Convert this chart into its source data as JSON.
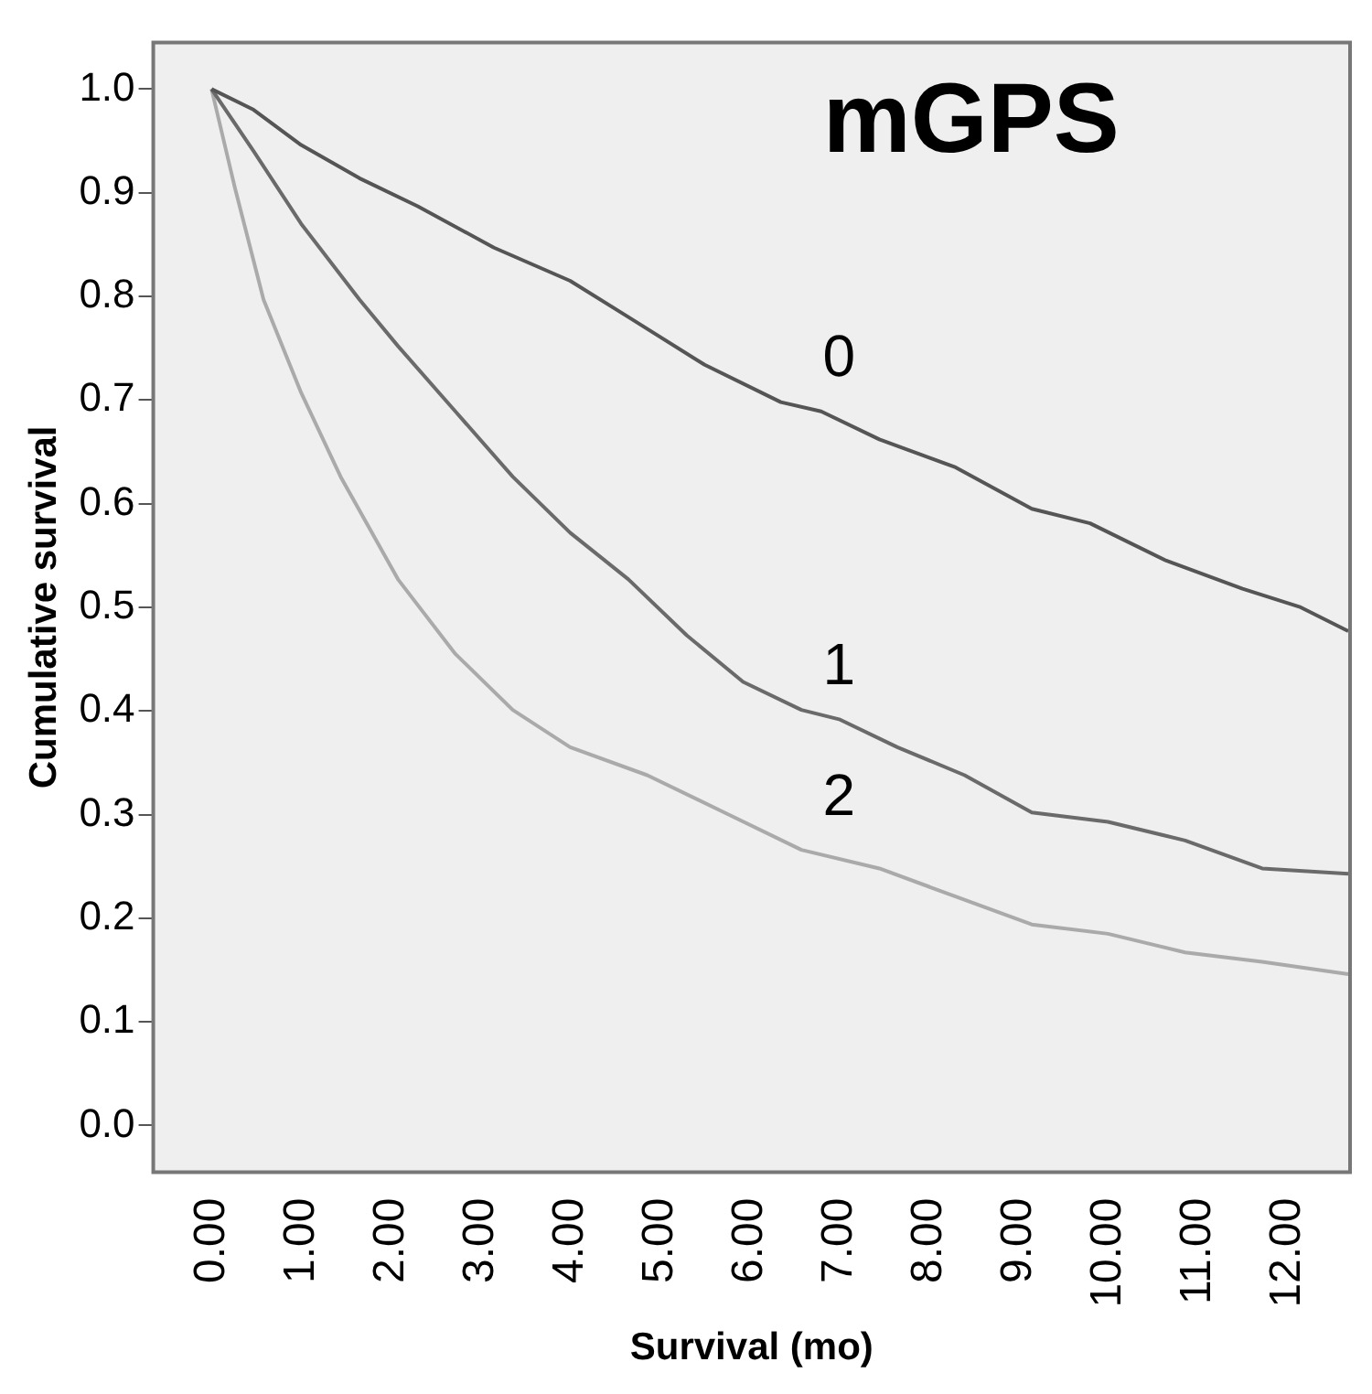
{
  "chart_data": {
    "type": "line",
    "title": "mGPS",
    "xlabel": "Survival (mo)",
    "ylabel": "Cumulative survival",
    "xlim": [
      -0.65,
      12.7
    ],
    "ylim": [
      -0.045,
      1.045
    ],
    "xticks": [
      {
        "value": 0,
        "label": "0.00"
      },
      {
        "value": 1,
        "label": "1.00"
      },
      {
        "value": 2,
        "label": "2.00"
      },
      {
        "value": 3,
        "label": "3.00"
      },
      {
        "value": 4,
        "label": "4.00"
      },
      {
        "value": 5,
        "label": "5.00"
      },
      {
        "value": 6,
        "label": "6.00"
      },
      {
        "value": 7,
        "label": "7.00"
      },
      {
        "value": 8,
        "label": "8.00"
      },
      {
        "value": 9,
        "label": "9.00"
      },
      {
        "value": 10,
        "label": "10.00"
      },
      {
        "value": 11,
        "label": "11.00"
      },
      {
        "value": 12,
        "label": "12.00"
      }
    ],
    "yticks": [
      {
        "value": 0,
        "label": "0.0"
      },
      {
        "value": 0.1,
        "label": "0.1"
      },
      {
        "value": 0.2,
        "label": "0.2"
      },
      {
        "value": 0.3,
        "label": "0.3"
      },
      {
        "value": 0.4,
        "label": "0.4"
      },
      {
        "value": 0.5,
        "label": "0.5"
      },
      {
        "value": 0.6,
        "label": "0.6"
      },
      {
        "value": 0.7,
        "label": "0.7"
      },
      {
        "value": 0.8,
        "label": "0.8"
      },
      {
        "value": 0.9,
        "label": "0.9"
      },
      {
        "value": 1,
        "label": "1.0"
      }
    ],
    "grid": false,
    "legend": false,
    "series": [
      {
        "name": "0",
        "color": "#555555",
        "x": [
          0,
          0.47,
          1.0,
          1.65,
          2.3,
          3.15,
          4.0,
          4.65,
          5.5,
          6.35,
          6.8,
          7.45,
          8.3,
          9.15,
          9.8,
          10.65,
          11.5,
          12.15,
          12.68
        ],
        "values": [
          1.0,
          0.98,
          0.946,
          0.914,
          0.887,
          0.847,
          0.815,
          0.78,
          0.734,
          0.698,
          0.689,
          0.662,
          0.635,
          0.595,
          0.581,
          0.545,
          0.518,
          0.5,
          0.477
        ]
      },
      {
        "name": "1",
        "color": "#6a6a6a",
        "x": [
          0,
          0.47,
          1.0,
          1.65,
          2.08,
          2.72,
          3.36,
          4.0,
          4.65,
          5.3,
          5.93,
          6.58,
          7.0,
          7.65,
          8.4,
          9.15,
          10.0,
          10.86,
          11.72,
          12.68
        ],
        "values": [
          1.0,
          0.94,
          0.87,
          0.797,
          0.752,
          0.689,
          0.626,
          0.572,
          0.527,
          0.473,
          0.428,
          0.401,
          0.392,
          0.365,
          0.338,
          0.302,
          0.293,
          0.275,
          0.248,
          0.243
        ]
      },
      {
        "name": "2",
        "color": "#aaaaaa",
        "x": [
          0,
          0.26,
          0.58,
          1.0,
          1.44,
          2.08,
          2.72,
          3.36,
          4.0,
          4.86,
          5.72,
          6.58,
          7.45,
          8.3,
          9.15,
          10.0,
          10.86,
          11.72,
          12.68
        ],
        "values": [
          1.0,
          0.905,
          0.797,
          0.707,
          0.626,
          0.527,
          0.455,
          0.401,
          0.365,
          0.338,
          0.302,
          0.266,
          0.248,
          0.221,
          0.194,
          0.185,
          0.167,
          0.158,
          0.146
        ]
      }
    ]
  }
}
